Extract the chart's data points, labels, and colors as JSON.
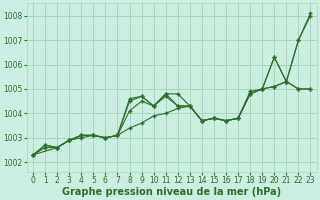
{
  "bg_color": "#cceee0",
  "grid_color": "#aad4c0",
  "line_color": "#2d6e2d",
  "marker_color": "#2d6e2d",
  "xlabel": "Graphe pression niveau de la mer (hPa)",
  "xlabel_fontsize": 7,
  "xlabel_bold": true,
  "ylabel_ticks": [
    1002,
    1003,
    1004,
    1005,
    1006,
    1007,
    1008
  ],
  "xlim": [
    -0.5,
    23.5
  ],
  "ylim": [
    1001.6,
    1008.5
  ],
  "xticks": [
    0,
    1,
    2,
    3,
    4,
    5,
    6,
    7,
    8,
    9,
    10,
    11,
    12,
    13,
    14,
    15,
    16,
    17,
    18,
    19,
    20,
    21,
    22,
    23
  ],
  "series": [
    {
      "x": [
        0,
        1,
        2,
        3,
        4,
        5,
        6,
        7,
        8,
        9,
        10,
        11,
        12,
        13,
        14,
        15,
        16,
        17,
        18,
        19,
        20,
        21,
        22,
        23
      ],
      "y": [
        1002.3,
        1002.7,
        1002.6,
        1002.9,
        1003.1,
        1003.1,
        1003.0,
        1003.1,
        1004.6,
        1004.7,
        1004.3,
        1004.8,
        1004.8,
        1004.3,
        1003.7,
        1003.8,
        1003.7,
        1003.8,
        1004.9,
        1005.0,
        1006.3,
        1005.3,
        1007.0,
        1008.1
      ]
    },
    {
      "x": [
        0,
        1,
        2,
        3,
        4,
        5,
        6,
        7,
        8,
        9,
        10,
        11,
        12,
        13,
        14,
        15,
        16,
        17,
        18,
        19,
        20,
        21,
        22,
        23
      ],
      "y": [
        1002.3,
        1002.7,
        1002.6,
        1002.9,
        1003.1,
        1003.1,
        1003.0,
        1003.1,
        1004.1,
        1004.5,
        1004.3,
        1004.7,
        1004.3,
        1004.3,
        1003.7,
        1003.8,
        1003.7,
        1003.8,
        1004.8,
        1005.0,
        1006.3,
        1005.3,
        1007.0,
        1008.0
      ]
    },
    {
      "x": [
        0,
        2,
        3,
        4,
        5,
        6,
        7,
        8,
        9,
        10,
        11,
        12,
        13,
        14,
        15,
        16,
        17,
        18,
        19,
        20,
        21,
        22,
        23
      ],
      "y": [
        1002.3,
        1002.6,
        1002.9,
        1003.1,
        1003.1,
        1003.0,
        1003.1,
        1004.5,
        1004.7,
        1004.3,
        1004.8,
        1004.3,
        1004.3,
        1003.7,
        1003.8,
        1003.7,
        1003.8,
        1004.8,
        1005.0,
        1005.1,
        1005.3,
        1005.0,
        1005.0
      ]
    },
    {
      "x": [
        0,
        1,
        2,
        3,
        4,
        5,
        6,
        7,
        8,
        9,
        10,
        11,
        12,
        13,
        14,
        15,
        16,
        17,
        18,
        19,
        20,
        21,
        22,
        23
      ],
      "y": [
        1002.3,
        1002.6,
        1002.6,
        1002.9,
        1003.0,
        1003.1,
        1003.0,
        1003.1,
        1003.4,
        1003.6,
        1003.9,
        1004.0,
        1004.2,
        1004.3,
        1003.7,
        1003.8,
        1003.7,
        1003.8,
        1004.8,
        1005.0,
        1005.1,
        1005.3,
        1005.0,
        1005.0
      ]
    }
  ]
}
